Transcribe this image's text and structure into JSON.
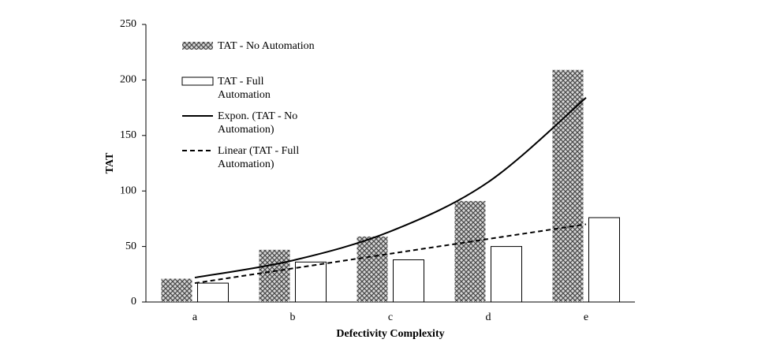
{
  "chart_data": {
    "type": "bar",
    "x_label": "Defectivity Complexity",
    "y_label": "TAT",
    "categories": [
      "a",
      "b",
      "c",
      "d",
      "e"
    ],
    "series": [
      {
        "name": "TAT - No Automation",
        "type": "bar",
        "color": "#4a4a4a",
        "pattern": "crosshatch",
        "values": [
          21,
          47,
          59,
          91,
          209
        ]
      },
      {
        "name": "TAT - Full Automation",
        "type": "bar",
        "color": "#ffffff",
        "pattern": "none",
        "values": [
          17,
          36,
          38,
          50,
          76
        ]
      },
      {
        "name": "Expon. (TAT - No Automation)",
        "type": "line",
        "color": "#000000",
        "line_style": "solid",
        "values": [
          22,
          37.4,
          63.6,
          108,
          184
        ]
      },
      {
        "name": "Linear (TAT - Full Automation)",
        "type": "line",
        "color": "#000000",
        "line_style": "dashed",
        "values": [
          17,
          30.25,
          43.5,
          56.75,
          70
        ]
      }
    ],
    "ylim": [
      0,
      250
    ],
    "yticks": [
      0,
      50,
      100,
      150,
      200,
      250
    ],
    "grid": false
  }
}
